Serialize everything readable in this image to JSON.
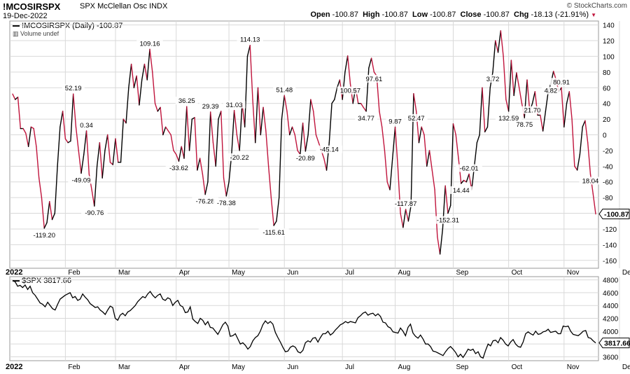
{
  "header": {
    "symbol": "!MCOSIRSPX",
    "description": "SPX McClellan Osc  INDX",
    "date": "19-Dec-2022",
    "open_label": "Open",
    "open": "-100.87",
    "high_label": "High",
    "high": "-100.87",
    "low_label": "Low",
    "low": "-100.87",
    "close_label": "Close",
    "close": "-100.87",
    "chg_label": "Chg",
    "chg": "-18.13 (-21.91%)",
    "chg_arrow": "▼",
    "copyright": "© StockCharts.com"
  },
  "colors": {
    "up": "#000000",
    "down": "#c0143c",
    "grid": "#d9d9d9",
    "spx": "#000000"
  },
  "chart_data": [
    {
      "type": "line",
      "legend": "!MCOSIRSPX (Daily) -100.87",
      "legend_sub": "Volume undef",
      "last_value_label": "-100.87",
      "ylim": [
        -170,
        145
      ],
      "y_ticks": [
        140,
        120,
        100,
        80,
        60,
        40,
        20,
        0,
        -20,
        -40,
        -60,
        -80,
        -100,
        -120,
        -140,
        -160
      ],
      "x_labels": [
        "2022",
        "Feb",
        "Mar",
        "Apr",
        "May",
        "Jun",
        "Jul",
        "Aug",
        "Sep",
        "Oct",
        "Nov",
        "Dec"
      ],
      "x_label_index": [
        0,
        20,
        39,
        62,
        82,
        103,
        125,
        145,
        167,
        188,
        209,
        230
      ],
      "values": [
        52,
        45,
        48,
        8,
        8,
        2,
        -15,
        10,
        8,
        -15,
        -55,
        -80,
        -119,
        -112,
        -85,
        -108,
        -100,
        -40,
        10,
        30,
        -5,
        -10,
        -8,
        52,
        10,
        -20,
        -49,
        -25,
        5,
        -50,
        -70,
        -90.76,
        -40,
        -10,
        -55,
        -20,
        0,
        -35,
        -38,
        -5,
        -35,
        -35,
        20,
        15,
        60,
        90,
        60,
        75,
        38,
        70,
        90,
        70,
        109,
        80,
        40,
        30,
        35,
        0,
        10,
        5,
        0,
        -20,
        -25,
        -33.62,
        -15,
        -30,
        36,
        -20,
        20,
        22,
        -45,
        -30,
        -50,
        -76,
        -60,
        29,
        -10,
        -40,
        20,
        30,
        -55,
        -78,
        -60,
        -25,
        31,
        0,
        -20,
        40,
        10,
        100,
        114,
        45,
        -10,
        60,
        0,
        35,
        5,
        -40,
        -80,
        -115.61,
        -110,
        -80,
        20,
        50,
        30,
        0,
        10,
        0,
        -20,
        -25,
        15,
        -20.89,
        0,
        45,
        30,
        0,
        -10,
        -20,
        -30,
        -45.14,
        -10,
        40,
        45,
        60,
        70,
        45,
        80,
        100.57,
        65,
        40,
        60,
        40,
        40,
        34.77,
        30,
        85,
        97.61,
        80,
        75,
        30,
        10,
        -20,
        -60,
        -70,
        -30,
        9.87,
        -40,
        -100,
        -118,
        -95,
        -110,
        -90,
        52.47,
        30,
        -10,
        10,
        0,
        -40,
        -20,
        -45,
        -70,
        -130,
        -152,
        -120,
        -65,
        -100,
        -90,
        14,
        0,
        -30,
        -62,
        -58,
        -60,
        -50,
        -70,
        -40,
        -10,
        0,
        60,
        3.72,
        10,
        60,
        80,
        120,
        105,
        132.59,
        100,
        45,
        30,
        95,
        50,
        79,
        60,
        40,
        21.7,
        70,
        30,
        40,
        55,
        25,
        25,
        4.82,
        30,
        55,
        65,
        80.91,
        70,
        55,
        60,
        10,
        40,
        55,
        20,
        -40,
        -45,
        -25,
        10,
        18.04,
        -10,
        -50,
        -75,
        -100.87
      ],
      "annotations": [
        {
          "i": 12,
          "label": "-119.20"
        },
        {
          "i": 23,
          "label": "52.19"
        },
        {
          "i": 26,
          "label": "-49.09"
        },
        {
          "i": 28,
          "label": "0.34"
        },
        {
          "i": 31,
          "label": "-90.76"
        },
        {
          "i": 52,
          "label": "109.16"
        },
        {
          "i": 63,
          "label": "-33.62"
        },
        {
          "i": 66,
          "label": "36.25"
        },
        {
          "i": 73,
          "label": "-76.28"
        },
        {
          "i": 75,
          "label": "29.39"
        },
        {
          "i": 81,
          "label": "-78.38"
        },
        {
          "i": 84,
          "label": "31.03"
        },
        {
          "i": 86,
          "label": "-20.22"
        },
        {
          "i": 90,
          "label": "114.13"
        },
        {
          "i": 99,
          "label": "-115.61"
        },
        {
          "i": 103,
          "label": "51.48"
        },
        {
          "i": 111,
          "label": "-20.89"
        },
        {
          "i": 120,
          "label": "-45.14"
        },
        {
          "i": 128,
          "label": "100.57"
        },
        {
          "i": 134,
          "label": "34.77"
        },
        {
          "i": 137,
          "label": "97.61"
        },
        {
          "i": 145,
          "label": "9.87"
        },
        {
          "i": 149,
          "label": "-117.87"
        },
        {
          "i": 153,
          "label": "52.47"
        },
        {
          "i": 165,
          "label": "-152.31"
        },
        {
          "i": 170,
          "label": "14.44"
        },
        {
          "i": 173,
          "label": "-62.01"
        },
        {
          "i": 182,
          "label": "3.72"
        },
        {
          "i": 188,
          "label": "132.59"
        },
        {
          "i": 194,
          "label": "78.75"
        },
        {
          "i": 197,
          "label": "21.70"
        },
        {
          "i": 204,
          "label": "4.82"
        },
        {
          "i": 208,
          "label": "80.91"
        },
        {
          "i": 219,
          "label": "18.04"
        }
      ]
    },
    {
      "type": "line",
      "legend": "$SPX 3817.66",
      "last_value_label": "3817.66",
      "ylim": [
        3540,
        4850
      ],
      "y_ticks": [
        4800,
        4600,
        4400,
        4200,
        4000,
        3800,
        3600
      ],
      "values": [
        4790,
        4770,
        4700,
        4715,
        4680,
        4720,
        4650,
        4700,
        4600,
        4560,
        4500,
        4440,
        4420,
        4380,
        4450,
        4400,
        4350,
        4330,
        4420,
        4500,
        4530,
        4560,
        4580,
        4600,
        4520,
        4540,
        4480,
        4500,
        4580,
        4530,
        4490,
        4430,
        4400,
        4370,
        4380,
        4330,
        4300,
        4260,
        4330,
        4390,
        4370,
        4200,
        4170,
        4250,
        4280,
        4240,
        4300,
        4320,
        4360,
        4400,
        4460,
        4500,
        4540,
        4520,
        4580,
        4620,
        4560,
        4520,
        4560,
        4580,
        4500,
        4480,
        4520,
        4500,
        4400,
        4450,
        4480,
        4400,
        4380,
        4290,
        4300,
        4380,
        4190,
        4150,
        4120,
        4200,
        4170,
        4100,
        4150,
        4060,
        4050,
        4000,
        3950,
        4020,
        4100,
        4140,
        4080,
        3920,
        3930,
        3960,
        3880,
        3800,
        3820,
        3780,
        3720,
        3760,
        3850,
        3900,
        3930,
        4000,
        4100,
        4160,
        4120,
        4150,
        4110,
        3980,
        3900,
        3830,
        3750,
        3680,
        3690,
        3750,
        3770,
        3750,
        3680,
        3660,
        3700,
        3820,
        3850,
        3830,
        3890,
        3900,
        3830,
        3900,
        3960,
        3960,
        4000,
        3940,
        3970,
        4020,
        4060,
        4100,
        4120,
        4150,
        4130,
        4150,
        4140,
        4130,
        4210,
        4240,
        4280,
        4300,
        4250,
        4270,
        4280,
        4240,
        4270,
        4230,
        4140,
        4130,
        4070,
        4050,
        3990,
        3980,
        3970,
        4050,
        4000,
        3930,
        4060,
        4110,
        3970,
        3920,
        3890,
        3940,
        3880,
        3800,
        3800,
        3760,
        3690,
        3680,
        3660,
        3640,
        3620,
        3680,
        3730,
        3760,
        3720,
        3670,
        3600,
        3640,
        3590,
        3650,
        3720,
        3700,
        3720,
        3650,
        3680,
        3600,
        3580,
        3700,
        3800,
        3770,
        3850,
        3860,
        3820,
        3900,
        3860,
        3800,
        3770,
        3830,
        3870,
        3800,
        3760,
        3750,
        3830,
        3960,
        3990,
        3960,
        3940,
        4000,
        3950,
        3960,
        3990,
        4000,
        4030,
        3980,
        3990,
        4000,
        3960,
        3960,
        4080,
        4070,
        4080,
        4000,
        3950,
        3940,
        3930,
        3960,
        4000,
        4010,
        3900,
        3890,
        3850,
        3817.66
      ]
    }
  ]
}
